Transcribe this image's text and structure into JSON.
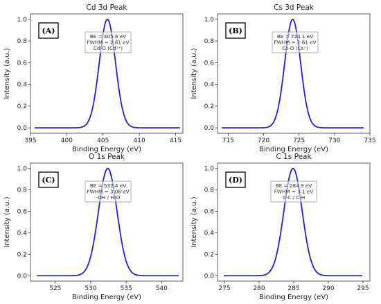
{
  "chart_data": [
    {
      "id": "A",
      "type": "line",
      "panel_label": "(A)",
      "title": "Cd 3d Peak",
      "xlabel": "Binding Energy (eV)",
      "ylabel": "Intensity (a.u.)",
      "xlim": [
        395,
        416
      ],
      "ylim": [
        -0.05,
        1.05
      ],
      "xticks": [
        395,
        400,
        405,
        410,
        415
      ],
      "yticks": [
        0.0,
        0.2,
        0.4,
        0.6,
        0.8,
        1.0
      ],
      "grid": false,
      "line_color": "#1f1fd6",
      "series": [
        {
          "shape": "gaussian",
          "x_range": [
            395.6,
            415.6
          ],
          "center": 405.6,
          "fwhm": 2.61,
          "amplitude": 1.0
        }
      ],
      "annotation": {
        "lines": [
          "BE = 405.6 eV",
          "FWHM = 2.61 eV",
          "Cd-O (Cd²⁺)"
        ]
      }
    },
    {
      "id": "B",
      "type": "line",
      "panel_label": "(B)",
      "title": "Cs 3d Peak",
      "xlabel": "Binding Energy (eV)",
      "ylabel": "Intensity (a.u.)",
      "xlim": [
        713.5,
        735
      ],
      "ylim": [
        -0.05,
        1.05
      ],
      "xticks": [
        715,
        720,
        725,
        730,
        735
      ],
      "yticks": [
        0.0,
        0.2,
        0.4,
        0.6,
        0.8,
        1.0
      ],
      "grid": false,
      "line_color": "#1f1fd6",
      "series": [
        {
          "shape": "gaussian",
          "x_range": [
            714.1,
            734.1
          ],
          "center": 724.1,
          "fwhm": 2.61,
          "amplitude": 1.0
        }
      ],
      "annotation": {
        "lines": [
          "BE = 724.1 eV",
          "FWHM = 2.61 eV",
          "Cs-O (Cs⁺)"
        ]
      }
    },
    {
      "id": "C",
      "type": "line",
      "panel_label": "(C)",
      "title": "O 1s Peak",
      "xlabel": "Binding Energy (eV)",
      "ylabel": "Intensity (a.u.)",
      "xlim": [
        521.5,
        543
      ],
      "ylim": [
        -0.05,
        1.05
      ],
      "xticks": [
        525,
        530,
        535,
        540
      ],
      "yticks": [
        0.0,
        0.2,
        0.4,
        0.6,
        0.8,
        1.0
      ],
      "grid": false,
      "line_color": "#1f1fd6",
      "series": [
        {
          "shape": "gaussian",
          "x_range": [
            522.4,
            542.4
          ],
          "center": 532.4,
          "fwhm": 3.06,
          "amplitude": 1.0
        }
      ],
      "annotation": {
        "lines": [
          "BE = 532.4 eV",
          "FWHM = 3.06 eV",
          "-OH / H₂O"
        ]
      }
    },
    {
      "id": "D",
      "type": "line",
      "panel_label": "(D)",
      "title": "C 1s Peak",
      "xlabel": "Binding Energy (eV)",
      "ylabel": "Intensity (a.u.)",
      "xlim": [
        274,
        296
      ],
      "ylim": [
        -0.05,
        1.05
      ],
      "xticks": [
        275,
        280,
        285,
        290,
        295
      ],
      "yticks": [
        0.0,
        0.2,
        0.4,
        0.6,
        0.8,
        1.0
      ],
      "grid": false,
      "line_color": "#1f1fd6",
      "series": [
        {
          "shape": "gaussian",
          "x_range": [
            274.9,
            294.9
          ],
          "center": 284.9,
          "fwhm": 3.1,
          "amplitude": 1.0
        }
      ],
      "annotation": {
        "lines": [
          "BE = 284.9 eV",
          "FWHM = 3.1 eV",
          "C-C / C-H"
        ]
      }
    }
  ]
}
